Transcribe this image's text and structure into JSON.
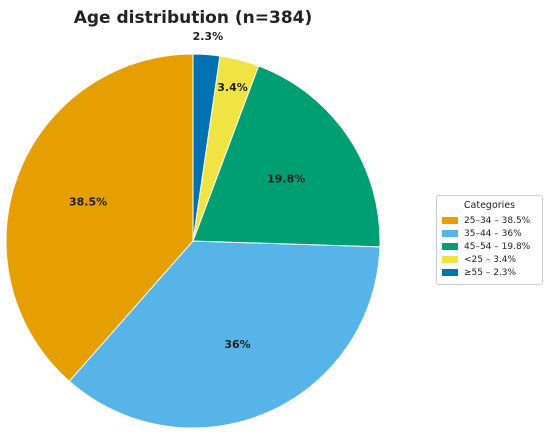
{
  "chart_data": {
    "type": "pie",
    "title": "Age distribution (n=384)",
    "categories": [
      "25–34",
      "35–44",
      "45–54",
      "<25",
      "≥55"
    ],
    "values": [
      38.5,
      36,
      19.8,
      3.4,
      2.3
    ],
    "value_labels": [
      "38.5%",
      "36%",
      "19.8%",
      "3.4%",
      "2.3%"
    ],
    "colors": [
      "#E69F00",
      "#56B4E9",
      "#009E73",
      "#F0E442",
      "#0072B2"
    ],
    "start_angle": "top, counterclockwise from 12 o'clock for 25–34",
    "legend": {
      "title": "Categories",
      "placement": "right",
      "entries": [
        "25–34 – 38.5%",
        "35–44 – 36%",
        "45–54 – 19.8%",
        "<25 – 3.4%",
        "≥55 – 2.3%"
      ]
    }
  }
}
